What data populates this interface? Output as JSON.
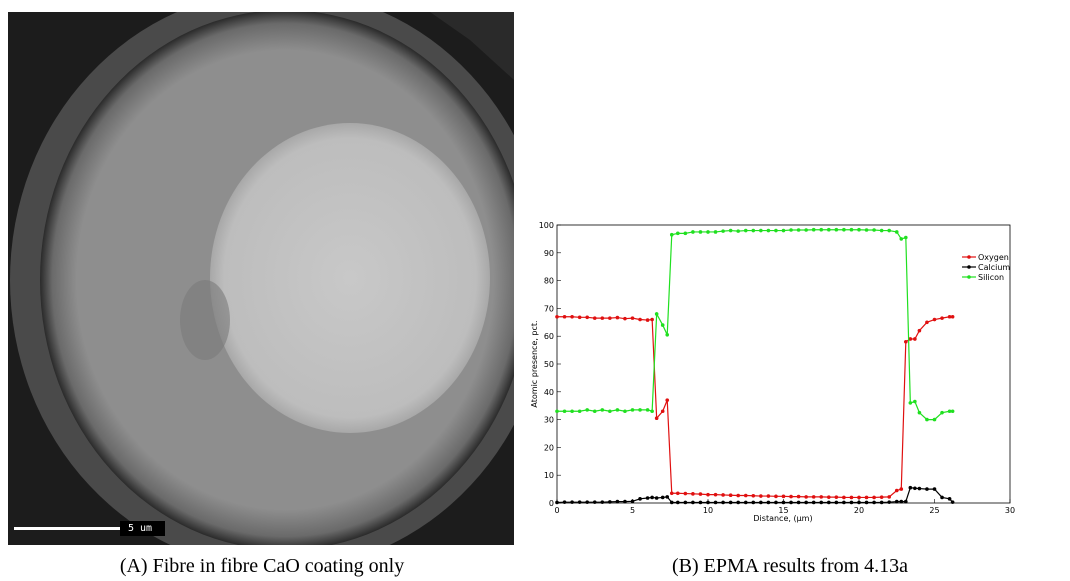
{
  "figure": {
    "image_scale_label": "5 um",
    "caption_a": "(A) Fibre in fibre CaO coating only",
    "caption_b": "(B) EPMA results from 4.13a"
  },
  "chart_data": {
    "type": "line",
    "x_label": "Distance, (μm)",
    "y_label": "Atomic presence, pct.",
    "xlim": [
      0,
      30
    ],
    "ylim": [
      0,
      100
    ],
    "xticks": [
      0,
      5,
      10,
      15,
      20,
      25,
      30
    ],
    "yticks": [
      0,
      10,
      20,
      30,
      40,
      50,
      60,
      70,
      80,
      90,
      100
    ],
    "grid": false,
    "legend": "upper right",
    "x": [
      0,
      0.5,
      1,
      1.5,
      2,
      2.5,
      3,
      3.5,
      4,
      4.5,
      5,
      5.5,
      6,
      6.3,
      6.6,
      7,
      7.3,
      7.6,
      8,
      8.5,
      9,
      9.5,
      10,
      10.5,
      11,
      11.5,
      12,
      12.5,
      13,
      13.5,
      14,
      14.5,
      15,
      15.5,
      16,
      16.5,
      17,
      17.5,
      18,
      18.5,
      19,
      19.5,
      20,
      20.5,
      21,
      21.5,
      22,
      22.5,
      22.8,
      23.1,
      23.4,
      23.7,
      24,
      24.5,
      25,
      25.5,
      26,
      26.2
    ],
    "series": [
      {
        "name": "Oxygen",
        "color": "#e01010",
        "values": [
          67,
          67,
          67,
          66.8,
          66.8,
          66.5,
          66.5,
          66.5,
          66.7,
          66.3,
          66.5,
          66,
          65.8,
          66,
          30.5,
          33,
          37,
          3.5,
          3.5,
          3.4,
          3.3,
          3.2,
          3,
          3,
          2.9,
          2.8,
          2.7,
          2.7,
          2.6,
          2.5,
          2.5,
          2.4,
          2.4,
          2.3,
          2.3,
          2.2,
          2.2,
          2.2,
          2.1,
          2.1,
          2,
          2,
          2,
          2,
          2,
          2.1,
          2.2,
          4.5,
          5,
          58,
          59,
          59,
          62,
          65,
          66,
          66.5,
          67,
          67
        ]
      },
      {
        "name": "Calcium",
        "color": "#000000",
        "values": [
          0.2,
          0.3,
          0.3,
          0.3,
          0.3,
          0.3,
          0.3,
          0.4,
          0.5,
          0.5,
          0.6,
          1.5,
          1.8,
          2,
          1.8,
          2,
          2.2,
          0.2,
          0.2,
          0.2,
          0.2,
          0.2,
          0.2,
          0.2,
          0.2,
          0.2,
          0.2,
          0.2,
          0.2,
          0.2,
          0.2,
          0.2,
          0.2,
          0.2,
          0.2,
          0.2,
          0.2,
          0.2,
          0.2,
          0.2,
          0.2,
          0.2,
          0.2,
          0.2,
          0.2,
          0.2,
          0.3,
          0.5,
          0.5,
          0.5,
          5.5,
          5.3,
          5.2,
          5,
          5,
          2,
          1.5,
          0.3
        ]
      },
      {
        "name": "Silicon",
        "color": "#20e020",
        "values": [
          33,
          33,
          33,
          33,
          33.5,
          33,
          33.5,
          33,
          33.5,
          33,
          33.5,
          33.5,
          33.5,
          33,
          68,
          64,
          60.5,
          96.5,
          97,
          97,
          97.5,
          97.5,
          97.5,
          97.5,
          97.8,
          98,
          97.8,
          98,
          98,
          98,
          98,
          98,
          98,
          98.2,
          98.2,
          98.2,
          98.3,
          98.3,
          98.3,
          98.3,
          98.3,
          98.3,
          98.3,
          98.2,
          98.2,
          98,
          98,
          97.5,
          95,
          95.5,
          36,
          36.5,
          32.5,
          30,
          30,
          32.5,
          33,
          33
        ]
      }
    ]
  }
}
